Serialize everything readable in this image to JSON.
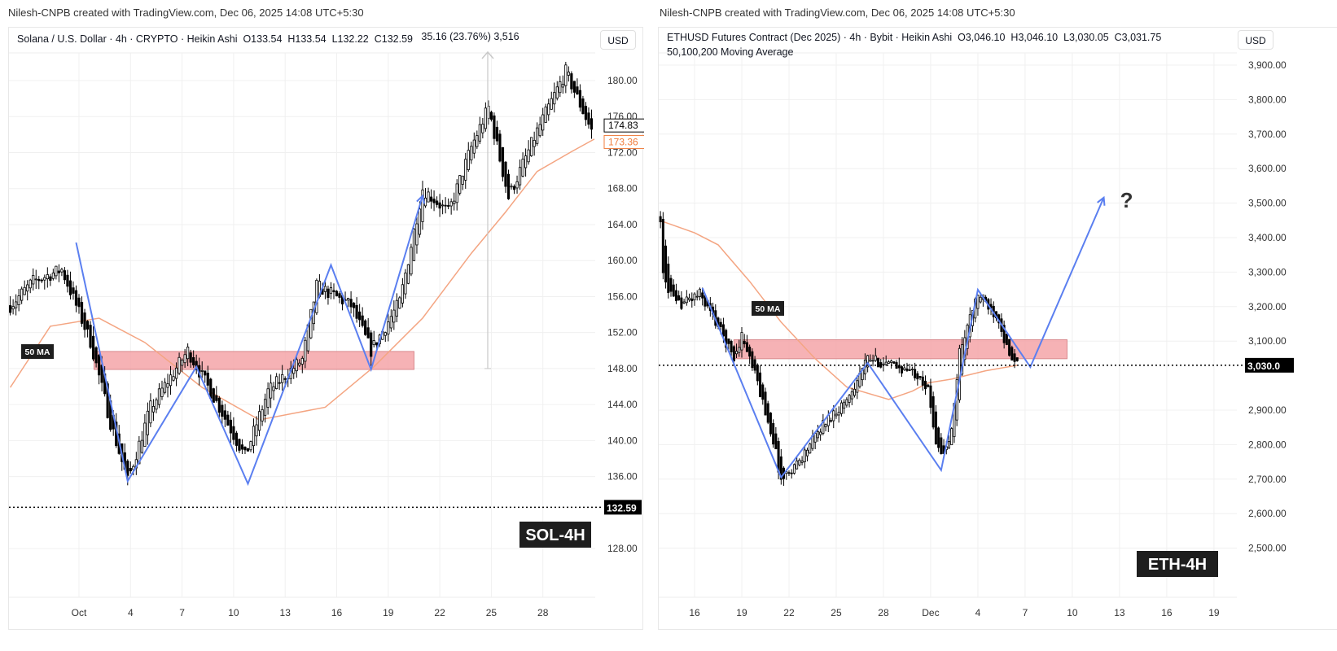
{
  "credits": {
    "left": "Nilesh-CNPB created with TradingView.com, Dec 06, 2025 14:08 UTC+5:30",
    "right": "Nilesh-CNPB created with TradingView.com, Dec 06, 2025 14:08 UTC+5:30"
  },
  "colors": {
    "candle": "#000000",
    "pattern_line": "#5b7ff0",
    "ma_line": "#f4a582",
    "zone": "#f4a4a8",
    "zone_border": "#d98a8e",
    "measure": "#c8c8c8",
    "label_bg": "#1e1e1e"
  },
  "chart_data": [
    {
      "type": "candlestick",
      "style": "Heikin Ashi",
      "legend": "Solana / U.S. Dollar · 4h · CRYPTO · Heikin Ashi",
      "ohlc": {
        "o": "O133.54",
        "h": "H133.54",
        "l": "L132.22",
        "c": "C132.59"
      },
      "currency_button": "USD",
      "badge": "SOL-4H",
      "ma_label": "50 MA",
      "grid": true,
      "y_ticks": [
        "180.00",
        "176.00",
        "172.00",
        "168.00",
        "164.00",
        "160.00",
        "156.00",
        "152.00",
        "148.00",
        "144.00",
        "140.00",
        "136.00",
        "128.00"
      ],
      "y_tick_values": [
        180,
        176,
        172,
        168,
        164,
        160,
        156,
        152,
        148,
        144,
        140,
        136,
        128
      ],
      "x_ticks": [
        {
          "label": "Oct",
          "date": "2025-10-01T00:00"
        },
        {
          "label": "4",
          "date": "2025-10-04T00:00"
        },
        {
          "label": "7",
          "date": "2025-10-07T00:00"
        },
        {
          "label": "10",
          "date": "2025-10-10T00:00"
        },
        {
          "label": "13",
          "date": "2025-10-13T00:00"
        },
        {
          "label": "16",
          "date": "2025-10-16T00:00"
        },
        {
          "label": "19",
          "date": "2025-10-19T00:00"
        },
        {
          "label": "22",
          "date": "2025-10-22T00:00"
        },
        {
          "label": "25",
          "date": "2025-10-25T00:00"
        },
        {
          "label": "28",
          "date": "2025-10-28T00:00"
        }
      ],
      "price_path": [
        [
          "2025-09-27T00:00",
          155.0
        ],
        [
          "2025-09-28T08:00",
          157.7
        ],
        [
          "2025-09-30T00:00",
          159.0
        ],
        [
          "2025-10-01T16:00",
          151.0
        ],
        [
          "2025-10-02T20:00",
          142.0
        ],
        [
          "2025-10-03T20:00",
          135.5
        ],
        [
          "2025-10-05T04:00",
          143.7
        ],
        [
          "2025-10-07T08:00",
          150.0
        ],
        [
          "2025-10-09T04:00",
          143.7
        ],
        [
          "2025-10-10T16:00",
          138.2
        ],
        [
          "2025-10-12T00:00",
          145.5
        ],
        [
          "2025-10-14T00:00",
          149.0
        ],
        [
          "2025-10-14T20:00",
          157.2
        ],
        [
          "2025-10-16T20:00",
          155.0
        ],
        [
          "2025-10-18T00:00",
          150.0
        ],
        [
          "2025-10-19T16:00",
          155.4
        ],
        [
          "2025-10-21T00:00",
          168.0
        ],
        [
          "2025-10-22T12:00",
          165.3
        ],
        [
          "2025-10-23T20:00",
          172.6
        ],
        [
          "2025-10-24T20:00",
          177.0
        ],
        [
          "2025-10-26T00:00",
          167.0
        ],
        [
          "2025-10-27T16:00",
          174.4
        ],
        [
          "2025-10-29T08:00",
          181.0
        ],
        [
          "2025-10-30T20:00",
          174.4
        ]
      ],
      "ma_50": [
        [
          "2025-09-27T00:00",
          145.9
        ],
        [
          "2025-09-29T08:00",
          152.7
        ],
        [
          "2025-10-02T04:00",
          153.6
        ],
        [
          "2025-10-04T20:00",
          150.9
        ],
        [
          "2025-10-08T04:00",
          145.9
        ],
        [
          "2025-10-11T12:00",
          142.3
        ],
        [
          "2025-10-15T08:00",
          143.7
        ],
        [
          "2025-10-18T04:00",
          148.2
        ],
        [
          "2025-10-21T00:00",
          153.6
        ],
        [
          "2025-10-23T20:00",
          160.8
        ],
        [
          "2025-10-25T20:00",
          165.4
        ],
        [
          "2025-10-27T16:00",
          169.9
        ],
        [
          "2025-10-29T16:00",
          172.1
        ],
        [
          "2025-10-31T00:00",
          173.5
        ]
      ],
      "pattern": [
        [
          "2025-09-30T20:00",
          162.0
        ],
        [
          "2025-10-03T20:00",
          135.5
        ],
        [
          "2025-10-07T20:00",
          148.2
        ],
        [
          "2025-10-10T20:00",
          135.2
        ],
        [
          "2025-10-15T16:00",
          159.5
        ],
        [
          "2025-10-18T00:00",
          147.9
        ],
        [
          "2025-10-21T00:00",
          167.2
        ]
      ],
      "zone": {
        "from": "2025-10-01T21:00",
        "to": "2025-10-20T12:00",
        "low": 147.9,
        "high": 149.9
      },
      "measure": {
        "date": "2025-10-24T19:00",
        "from": 148.0,
        "to": 183.16,
        "label": "35.16 (23.76%) 3,516"
      },
      "dotted_level": {
        "value": 132.59,
        "label": "132.59"
      },
      "price_labels": [
        {
          "value": 174.83,
          "label": "174.83",
          "kind": "last"
        },
        {
          "value": 173.36,
          "label": "173.36",
          "kind": "ma"
        }
      ]
    },
    {
      "type": "candlestick",
      "style": "Heikin Ashi",
      "legend": "ETHUSD Futures Contract (Dec 2025) · 4h · Bybit · Heikin Ashi",
      "ohlc": {
        "o": "O3,046.10",
        "h": "H3,046.10",
        "l": "L3,030.05",
        "c": "C3,031.75"
      },
      "indicator": "50,100,200 Moving Average",
      "currency_button": "USD",
      "badge": "ETH-4H",
      "ma_label": "50 MA",
      "annotation": "?",
      "grid": true,
      "y_ticks": [
        "3,900.00",
        "3,800.00",
        "3,700.00",
        "3,600.00",
        "3,500.00",
        "3,400.00",
        "3,300.00",
        "3,200.00",
        "3,100.00",
        "2,900.00",
        "2,800.00",
        "2,700.00",
        "2,600.00",
        "2,500.00"
      ],
      "y_tick_values": [
        3900,
        3800,
        3700,
        3600,
        3500,
        3400,
        3300,
        3200,
        3100,
        2900,
        2800,
        2700,
        2600,
        2500
      ],
      "x_ticks": [
        {
          "label": "16",
          "date": "2025-11-16T00:00"
        },
        {
          "label": "19",
          "date": "2025-11-19T00:00"
        },
        {
          "label": "22",
          "date": "2025-11-22T00:00"
        },
        {
          "label": "25",
          "date": "2025-11-25T00:00"
        },
        {
          "label": "28",
          "date": "2025-11-28T00:00"
        },
        {
          "label": "Dec",
          "date": "2025-12-01T00:00"
        },
        {
          "label": "4",
          "date": "2025-12-04T00:00"
        },
        {
          "label": "7",
          "date": "2025-12-07T00:00"
        },
        {
          "label": "10",
          "date": "2025-12-10T00:00"
        },
        {
          "label": "13",
          "date": "2025-12-13T00:00"
        },
        {
          "label": "16",
          "date": "2025-12-16T00:00"
        },
        {
          "label": "19",
          "date": "2025-12-19T00:00"
        }
      ],
      "price_path": [
        [
          "2025-11-13T20:00",
          3461
        ],
        [
          "2025-11-14T00:00",
          3284
        ],
        [
          "2025-11-14T20:00",
          3202
        ],
        [
          "2025-11-16T08:00",
          3237
        ],
        [
          "2025-11-17T12:00",
          3143
        ],
        [
          "2025-11-18T12:00",
          3049
        ],
        [
          "2025-11-19T00:00",
          3120
        ],
        [
          "2025-11-20T00:00",
          2978
        ],
        [
          "2025-11-21T00:00",
          2813
        ],
        [
          "2025-11-21T12:00",
          2695
        ],
        [
          "2025-11-22T20:00",
          2766
        ],
        [
          "2025-11-24T04:00",
          2860
        ],
        [
          "2025-11-25T16:00",
          2931
        ],
        [
          "2025-11-27T00:00",
          3049
        ],
        [
          "2025-11-28T20:00",
          3025
        ],
        [
          "2025-11-30T08:00",
          3002
        ],
        [
          "2025-11-30T20:00",
          2954
        ],
        [
          "2025-12-01T08:00",
          2813
        ],
        [
          "2025-12-01T20:00",
          2766
        ],
        [
          "2025-12-02T08:00",
          2837
        ],
        [
          "2025-12-02T20:00",
          3073
        ],
        [
          "2025-12-04T00:00",
          3237
        ],
        [
          "2025-12-05T08:00",
          3167
        ],
        [
          "2025-12-06T00:00",
          3049
        ],
        [
          "2025-12-06T12:00",
          3030
        ]
      ],
      "ma_50": [
        [
          "2025-11-13T20:00",
          3449
        ],
        [
          "2025-11-16T00:00",
          3414
        ],
        [
          "2025-11-17T12:00",
          3379
        ],
        [
          "2025-11-19T12:00",
          3273
        ],
        [
          "2025-11-21T12:00",
          3155
        ],
        [
          "2025-11-23T16:00",
          3049
        ],
        [
          "2025-11-25T16:00",
          2967
        ],
        [
          "2025-11-28T08:00",
          2931
        ],
        [
          "2025-11-29T20:00",
          2955
        ],
        [
          "2025-11-30T20:00",
          2979
        ],
        [
          "2025-12-02T08:00",
          2990
        ],
        [
          "2025-12-04T12:00",
          3014
        ],
        [
          "2025-12-06T12:00",
          3030
        ]
      ],
      "pattern": [
        [
          "2025-11-16T12:00",
          3254
        ],
        [
          "2025-11-21T12:00",
          2705
        ],
        [
          "2025-11-27T00:00",
          3037
        ],
        [
          "2025-12-01T16:00",
          2726
        ],
        [
          "2025-12-04T00:00",
          3249
        ],
        [
          "2025-12-07T08:00",
          3025
        ],
        [
          "2025-12-12T00:00",
          3516
        ]
      ],
      "zone": {
        "from": "2025-11-18T12:00",
        "to": "2025-12-09T16:00",
        "low": 3049,
        "high": 3104
      },
      "dotted_level": {
        "value": 3030,
        "label": "3,030.0"
      },
      "price_labels": []
    }
  ]
}
